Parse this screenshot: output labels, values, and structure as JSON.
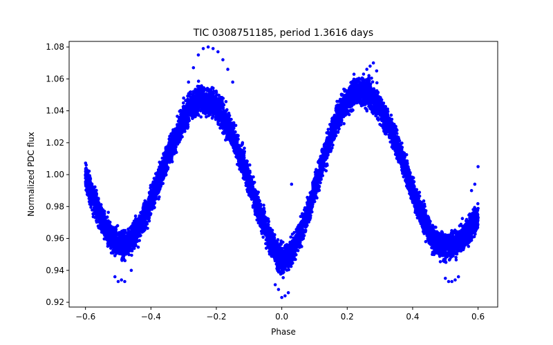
{
  "chart_data": {
    "type": "scatter",
    "title": "TIC 0308751185, period 1.3616 days",
    "xlabel": "Phase",
    "ylabel": "Normalized PDC flux",
    "xlim": [
      -0.65,
      0.66
    ],
    "ylim": [
      0.917,
      1.0835
    ],
    "x_ticks": [
      -0.6,
      -0.4,
      -0.2,
      0.0,
      0.2,
      0.4,
      0.6
    ],
    "x_tick_labels": [
      "−0.6",
      "−0.4",
      "−0.2",
      "0.0",
      "0.2",
      "0.4",
      "0.6"
    ],
    "y_ticks": [
      0.92,
      0.94,
      0.96,
      0.98,
      1.0,
      1.02,
      1.04,
      1.06,
      1.08
    ],
    "y_tick_labels": [
      "0.92",
      "0.94",
      "0.96",
      "0.98",
      "1.00",
      "1.02",
      "1.04",
      "1.06",
      "1.08"
    ],
    "grid": false,
    "marker_color": "#0000ff",
    "series": [
      {
        "color": "#0000ff",
        "x": [
          -0.6,
          -0.58,
          -0.56,
          -0.54,
          -0.52,
          -0.5,
          -0.48,
          -0.46,
          -0.44,
          -0.42,
          -0.4,
          -0.38,
          -0.36,
          -0.34,
          -0.32,
          -0.3,
          -0.28,
          -0.26,
          -0.24,
          -0.22,
          -0.2,
          -0.18,
          -0.16,
          -0.14,
          -0.12,
          -0.1,
          -0.08,
          -0.06,
          -0.04,
          -0.02,
          0.0,
          0.02,
          0.04,
          0.06,
          0.08,
          0.1,
          0.12,
          0.14,
          0.16,
          0.18,
          0.2,
          0.22,
          0.24,
          0.26,
          0.28,
          0.3,
          0.32,
          0.34,
          0.36,
          0.38,
          0.4,
          0.42,
          0.44,
          0.46,
          0.48,
          0.5,
          0.52,
          0.54,
          0.56,
          0.58,
          0.6
        ],
        "y": [
          1.0,
          0.987,
          0.976,
          0.967,
          0.961,
          0.957,
          0.956,
          0.959,
          0.965,
          0.973,
          0.983,
          0.994,
          1.005,
          1.016,
          1.026,
          1.035,
          1.042,
          1.046,
          1.047,
          1.046,
          1.043,
          1.037,
          1.029,
          1.019,
          1.008,
          0.996,
          0.984,
          0.972,
          0.961,
          0.952,
          0.946,
          0.948,
          0.955,
          0.965,
          0.977,
          0.991,
          1.005,
          1.018,
          1.03,
          1.04,
          1.047,
          1.051,
          1.052,
          1.051,
          1.048,
          1.042,
          1.034,
          1.025,
          1.014,
          1.002,
          0.99,
          0.979,
          0.969,
          0.961,
          0.956,
          0.955,
          0.956,
          0.958,
          0.962,
          0.967,
          0.973
        ]
      }
    ],
    "outliers": {
      "x": [
        -0.24,
        -0.225,
        -0.21,
        -0.195,
        -0.18,
        -0.165,
        -0.15,
        -0.255,
        -0.27,
        -0.285,
        -0.3,
        -0.5,
        -0.49,
        -0.48,
        -0.51,
        -0.46,
        0.0,
        0.01,
        0.02,
        -0.02,
        -0.01,
        0.26,
        0.27,
        0.28,
        0.29,
        0.25,
        0.5,
        0.51,
        0.52,
        0.54,
        0.53,
        0.58,
        0.6,
        0.59,
        -0.08,
        -0.06,
        0.03,
        -0.12,
        0.46,
        0.44
      ],
      "y": [
        1.079,
        1.08,
        1.079,
        1.077,
        1.072,
        1.066,
        1.058,
        1.075,
        1.067,
        1.058,
        1.048,
        0.933,
        0.934,
        0.933,
        0.936,
        0.94,
        0.923,
        0.924,
        0.926,
        0.931,
        0.928,
        1.066,
        1.068,
        1.07,
        1.065,
        1.063,
        0.935,
        0.933,
        0.933,
        0.936,
        0.934,
        0.99,
        1.005,
        0.994,
        0.975,
        0.968,
        0.994,
        1.02,
        0.95,
        0.958
      ]
    }
  }
}
